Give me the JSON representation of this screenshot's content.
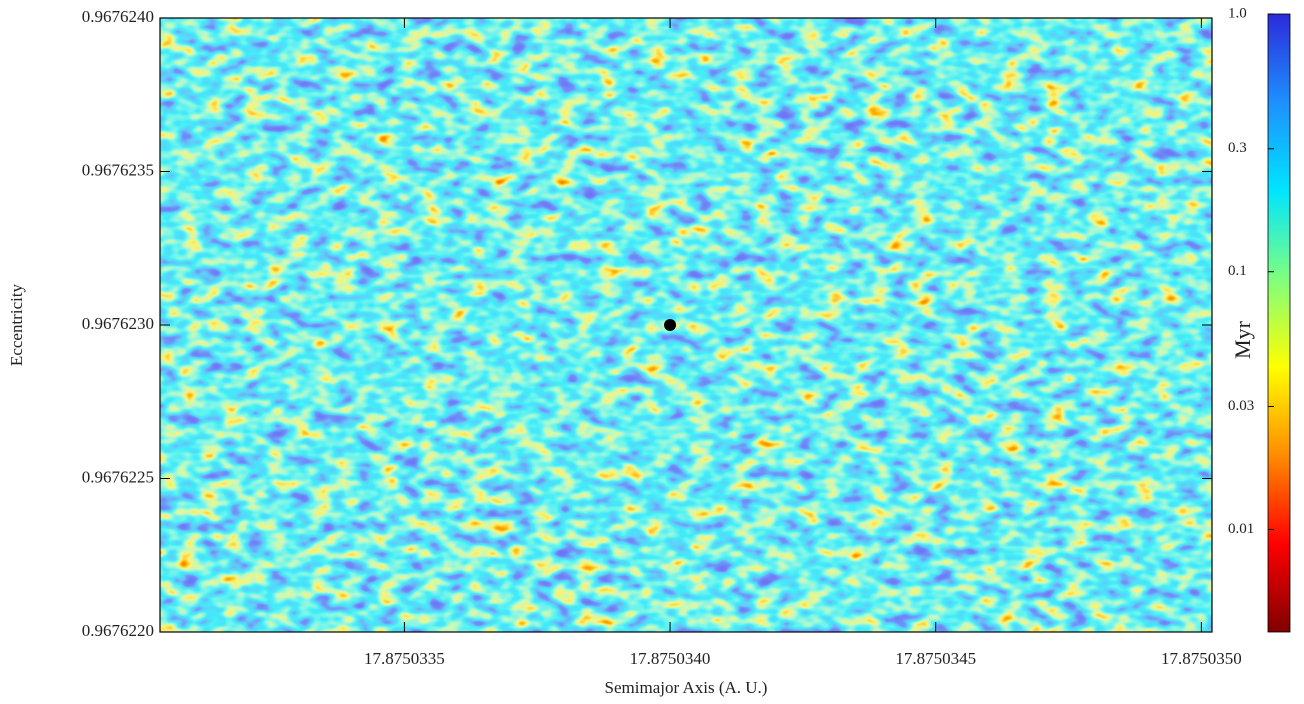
{
  "chart_data": {
    "type": "heatmap",
    "x_label": "Semimajor Axis (A. U.)",
    "y_label": "Eccentricity",
    "xlim": [
      17.87503304,
      17.87503502
    ],
    "xticks": [
      17.8750335,
      {
        "value": 17.875034,
        "label": "17.8750340"
      },
      17.8750345,
      {
        "value": 17.875035,
        "label": "17.8750350"
      }
    ],
    "ylim": [
      0.967622,
      0.967624
    ],
    "yticks": [
      {
        "value": 0.967622,
        "label": "0.9676220"
      },
      0.9676225,
      {
        "value": 0.967623,
        "label": "0.9676230"
      },
      0.9676235,
      {
        "value": 0.967624,
        "label": "0.9676240"
      }
    ],
    "points": [
      {
        "x": 17.875034,
        "y": 0.967623,
        "color": "#000000"
      }
    ],
    "colorbar": {
      "label": "Myr",
      "log": true,
      "clim": [
        0.004,
        1
      ],
      "ticks": [
        {
          "value": 1,
          "label": "1.0"
        },
        0.3,
        0.1,
        0.03,
        0.01
      ],
      "colors": [
        "#2b2bd9",
        "#1e90ff",
        "#00e5ff",
        "#7fff7f",
        "#ffff00",
        "#ff8c00",
        "#ff0000",
        "#800000"
      ]
    }
  }
}
